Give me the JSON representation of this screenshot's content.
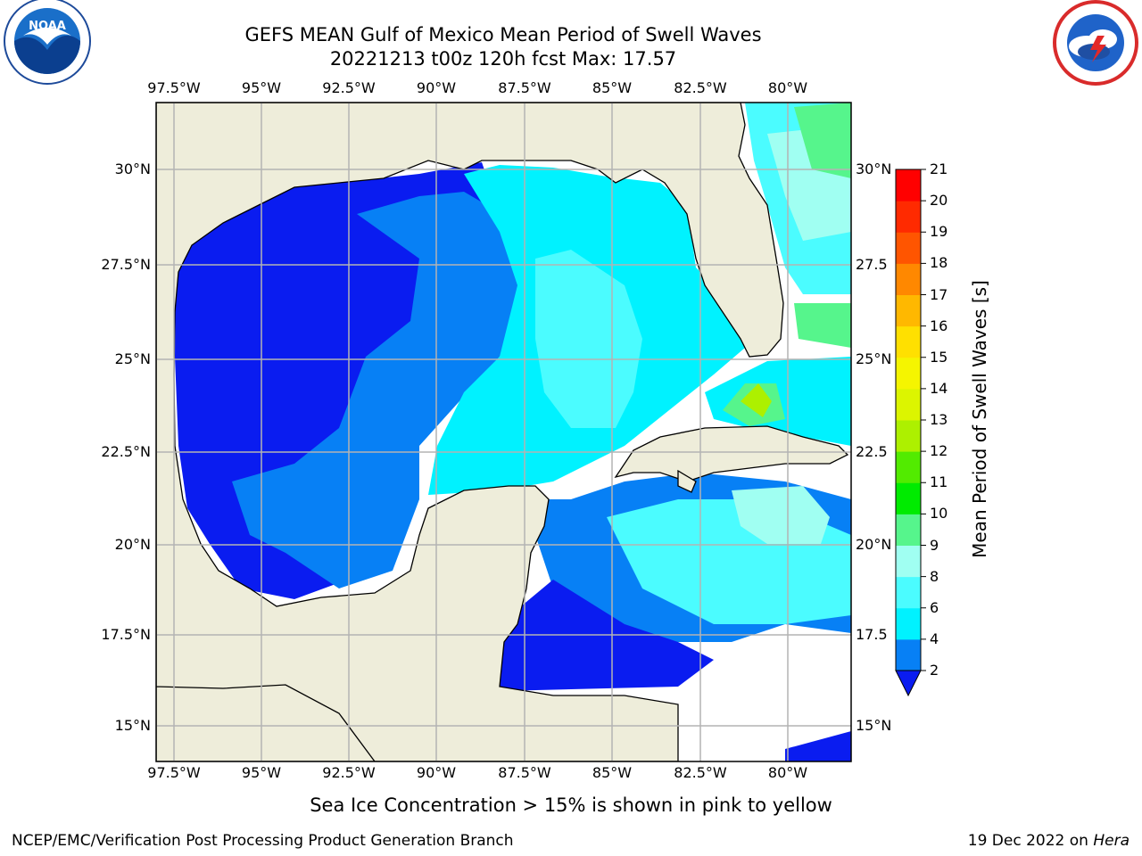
{
  "title": {
    "line1": "GEFS MEAN Gulf of Mexico Mean Period of Swell Waves",
    "line2": "20221213 t00z 120h fcst   Max: 17.57"
  },
  "logos": {
    "noaa": {
      "icon": "noaa-logo",
      "text": "NOAA"
    },
    "nws": {
      "icon": "national-weather-service-logo"
    }
  },
  "map": {
    "lon_labels": [
      "97.5°W",
      "95°W",
      "92.5°W",
      "90°W",
      "87.5°W",
      "85°W",
      "82.5°W",
      "80°W"
    ],
    "lat_labels_left": [
      "30°N",
      "27.5°N",
      "25°N",
      "22.5°N",
      "20°N",
      "17.5°N",
      "15°N"
    ],
    "lat_labels_right": [
      "30°N",
      "27.5",
      "25°N",
      "22.5",
      "20°N",
      "17.5",
      "15°N"
    ],
    "colors": {
      "land": "#eeedda",
      "ocean_unset": "#ffffff",
      "grid": "#b3b3b3"
    }
  },
  "colorbar": {
    "label": "Mean Period of Swell Waves [s]",
    "ticks": [
      "2",
      "4",
      "6",
      "8",
      "9",
      "10",
      "11",
      "12",
      "13",
      "14",
      "15",
      "16",
      "17",
      "18",
      "19",
      "20",
      "21"
    ],
    "colors": [
      "#0a1cf0",
      "#0780f5",
      "#00f2ff",
      "#4bfcff",
      "#a0fff2",
      "#56f58c",
      "#00eb00",
      "#52eb00",
      "#adf000",
      "#dcf500",
      "#f5f500",
      "#ffe000",
      "#ffb800",
      "#ff8800",
      "#ff5500",
      "#ff2a00",
      "#ff0000"
    ]
  },
  "note": "Sea Ice Concentration > 15% is shown in pink to yellow",
  "footer": {
    "left": "NCEP/EMC/Verification Post Processing Product Generation Branch",
    "right_prefix": "19 Dec 2022 on ",
    "right_host": "Hera"
  }
}
